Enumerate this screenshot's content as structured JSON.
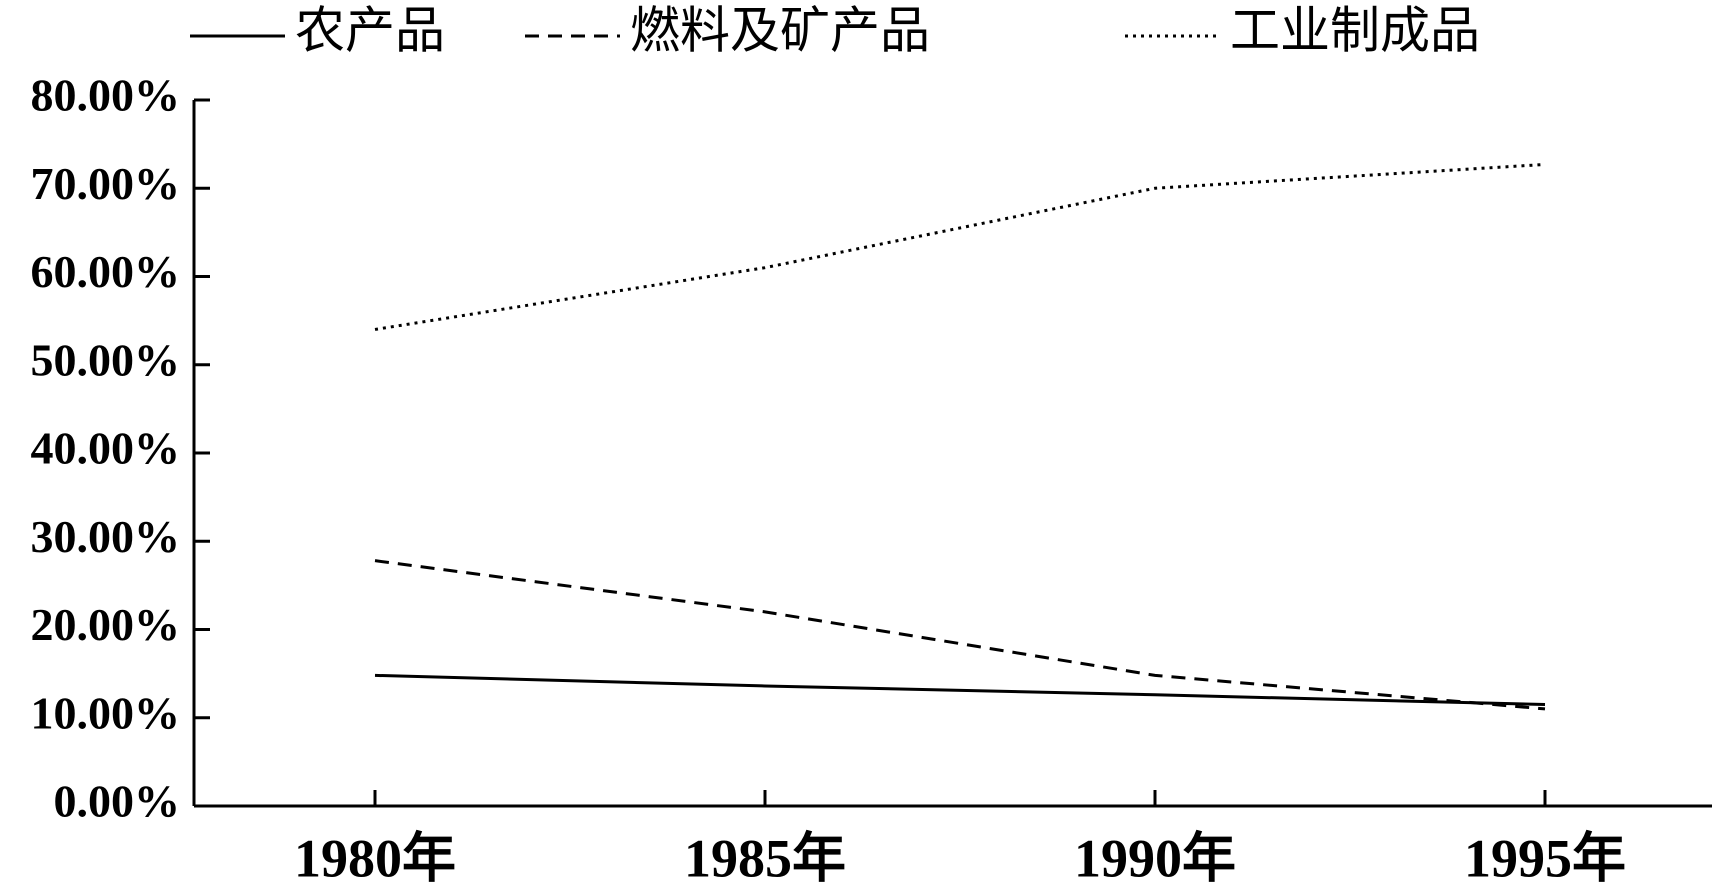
{
  "chart_data": {
    "type": "line",
    "categories": [
      "1980年",
      "1985年",
      "1990年",
      "1995年"
    ],
    "series": [
      {
        "name": "农产品",
        "color": "#000000",
        "style": "solid",
        "values": [
          14.8,
          13.6,
          12.6,
          11.5
        ]
      },
      {
        "name": "燃料及矿产品",
        "color": "#000000",
        "style": "dashed",
        "values": [
          27.8,
          22.0,
          14.8,
          11.0
        ]
      },
      {
        "name": "工业制成品",
        "color": "#000000",
        "style": "dotted",
        "values": [
          54.0,
          61.0,
          70.0,
          72.7
        ]
      }
    ],
    "ylim": [
      0,
      80
    ],
    "yticks": [
      {
        "value": 0,
        "label": "0.00%"
      },
      {
        "value": 10,
        "label": "10.00%"
      },
      {
        "value": 20,
        "label": "20.00%"
      },
      {
        "value": 30,
        "label": "30.00%"
      },
      {
        "value": 40,
        "label": "40.00%"
      },
      {
        "value": 50,
        "label": "50.00%"
      },
      {
        "value": 60,
        "label": "60.00%"
      },
      {
        "value": 70,
        "label": "70.00%"
      },
      {
        "value": 80,
        "label": "80.00%"
      }
    ],
    "legend": "top"
  }
}
